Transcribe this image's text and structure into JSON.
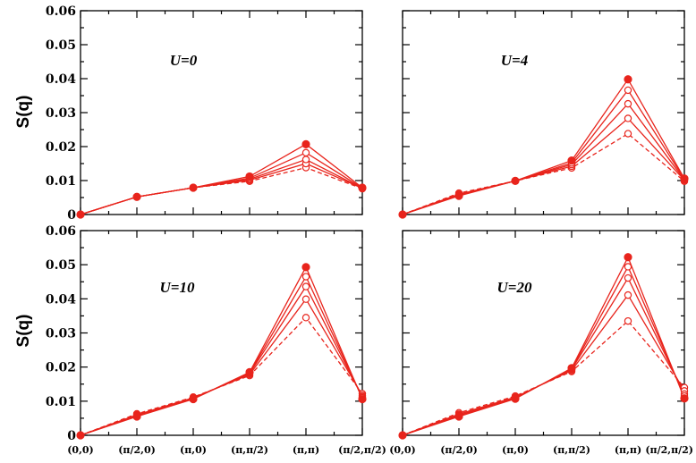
{
  "chart_data": [
    {
      "type": "line",
      "panel": "top-left",
      "annotation": "U=0",
      "ylabel": "S(q)",
      "ylim": [
        0,
        0.06
      ],
      "yticks": [
        "0",
        "0.01",
        "0.02",
        "0.03",
        "0.04",
        "0.05",
        "0.06"
      ],
      "categories": [
        "(0,0)",
        "(π/2,0)",
        "(π,0)",
        "(π,π/2)",
        "(π,π)",
        "(π/2,π/2)"
      ],
      "series": [
        {
          "marker": "open",
          "line": "dashed",
          "values": [
            0,
            0.0052,
            0.0079,
            0.0098,
            0.0138,
            0.0076
          ]
        },
        {
          "marker": "open",
          "line": "solid",
          "values": [
            0,
            0.0052,
            0.0079,
            0.0101,
            0.015,
            0.0077
          ]
        },
        {
          "marker": "open",
          "line": "solid",
          "values": [
            0,
            0.0052,
            0.0079,
            0.0104,
            0.0162,
            0.0077
          ]
        },
        {
          "marker": "open",
          "line": "solid",
          "values": [
            0,
            0.0052,
            0.0079,
            0.0107,
            0.0182,
            0.0078
          ]
        },
        {
          "marker": "filled",
          "line": "solid",
          "values": [
            0,
            0.0052,
            0.0079,
            0.0112,
            0.0207,
            0.0079
          ]
        }
      ]
    },
    {
      "type": "line",
      "panel": "top-right",
      "annotation": "U=4",
      "ylim": [
        0,
        0.06
      ],
      "categories": [
        "(0,0)",
        "(π/2,0)",
        "(π,0)",
        "(π,π/2)",
        "(π,π)",
        "(π/2,π/2)"
      ],
      "series": [
        {
          "marker": "open",
          "line": "dashed",
          "values": [
            0,
            0.0063,
            0.0099,
            0.0137,
            0.0238,
            0.0098
          ]
        },
        {
          "marker": "open",
          "line": "solid",
          "values": [
            0,
            0.006,
            0.0099,
            0.0142,
            0.0283,
            0.0101
          ]
        },
        {
          "marker": "open",
          "line": "solid",
          "values": [
            0,
            0.0058,
            0.0099,
            0.0147,
            0.0326,
            0.0102
          ]
        },
        {
          "marker": "open",
          "line": "solid",
          "values": [
            0,
            0.0057,
            0.0099,
            0.0152,
            0.0366,
            0.0104
          ]
        },
        {
          "marker": "filled",
          "line": "solid",
          "values": [
            0,
            0.0055,
            0.0099,
            0.0159,
            0.0398,
            0.0106
          ]
        }
      ]
    },
    {
      "type": "line",
      "panel": "bottom-left",
      "annotation": "U=10",
      "ylabel": "S(q)",
      "ylim": [
        0,
        0.06
      ],
      "yticks": [
        "0",
        "0.01",
        "0.02",
        "0.03",
        "0.04",
        "0.05",
        "0.06"
      ],
      "categories": [
        "(0,0)",
        "(π/2,0)",
        "(π,0)",
        "(π,π/2)",
        "(π,π)",
        "(π/2,π/2)"
      ],
      "series": [
        {
          "marker": "open",
          "line": "dashed",
          "values": [
            0,
            0.0063,
            0.0112,
            0.0175,
            0.0345,
            0.0122
          ]
        },
        {
          "marker": "open",
          "line": "solid",
          "values": [
            0,
            0.006,
            0.011,
            0.0178,
            0.0399,
            0.0117
          ]
        },
        {
          "marker": "open",
          "line": "solid",
          "values": [
            0,
            0.0058,
            0.0108,
            0.0181,
            0.0436,
            0.0113
          ]
        },
        {
          "marker": "open",
          "line": "solid",
          "values": [
            0,
            0.0057,
            0.0107,
            0.0183,
            0.0465,
            0.011
          ]
        },
        {
          "marker": "filled",
          "line": "solid",
          "values": [
            0,
            0.0055,
            0.0106,
            0.0185,
            0.0493,
            0.0106
          ]
        }
      ]
    },
    {
      "type": "line",
      "panel": "bottom-right",
      "annotation": "U=20",
      "ylim": [
        0,
        0.06
      ],
      "categories": [
        "(0,0)",
        "(π/2,0)",
        "(π,0)",
        "(π,π/2)",
        "(π,π)",
        "(π/2,π/2)"
      ],
      "series": [
        {
          "marker": "open",
          "line": "dashed",
          "values": [
            0,
            0.0066,
            0.0115,
            0.0187,
            0.0335,
            0.014
          ]
        },
        {
          "marker": "open",
          "line": "solid",
          "values": [
            0,
            0.0062,
            0.0112,
            0.019,
            0.0411,
            0.013
          ]
        },
        {
          "marker": "open",
          "line": "solid",
          "values": [
            0,
            0.0059,
            0.011,
            0.0193,
            0.0461,
            0.0121
          ]
        },
        {
          "marker": "open",
          "line": "solid",
          "values": [
            0,
            0.0057,
            0.0108,
            0.0195,
            0.0494,
            0.0115
          ]
        },
        {
          "marker": "filled",
          "line": "solid",
          "values": [
            0,
            0.0055,
            0.0107,
            0.0197,
            0.0522,
            0.0108
          ]
        }
      ]
    }
  ],
  "colors": {
    "series": "#e8241c",
    "axis": "#000000"
  }
}
